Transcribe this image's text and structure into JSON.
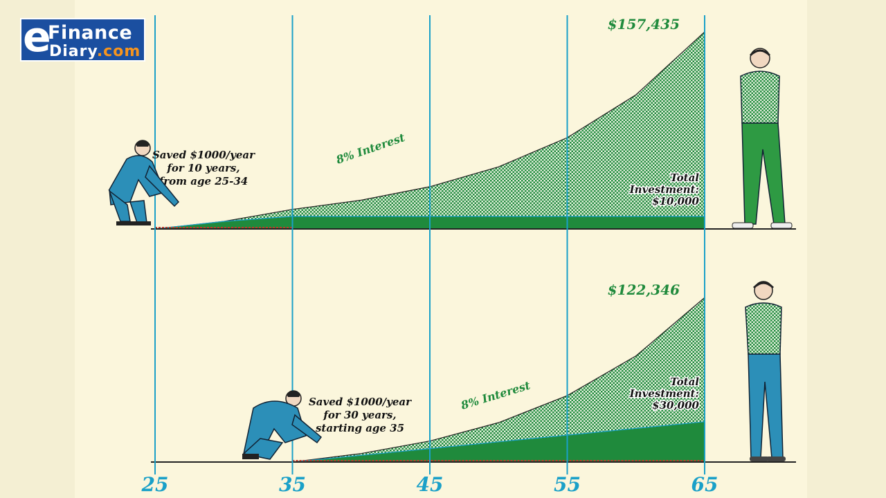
{
  "logo": {
    "letter": "e",
    "line1": "Finance",
    "line2": "Diary",
    "suffix": ".com"
  },
  "colors": {
    "line": "#1aa0c8",
    "green": "#1f8a3c",
    "green_light": "#8fc9a0",
    "text_green": "#1f8a3c",
    "axis_label": "#1aa0c8",
    "principal": "#c0392b"
  },
  "chart_data": [
    {
      "type": "area",
      "panel": "top",
      "x": [
        25,
        30,
        35,
        40,
        45,
        50,
        55,
        60,
        65
      ],
      "xticks": [
        "25",
        "35",
        "45",
        "55",
        "65"
      ],
      "series": [
        {
          "values": [
            0,
            6000,
            15645,
            22988,
            33776,
            49627,
            72920,
            107146,
            157435
          ]
        }
      ],
      "total_investment_values": [
        0,
        6000,
        10000,
        10000,
        10000,
        10000,
        10000,
        10000,
        10000
      ],
      "final_value_label": "$157,435",
      "interest_label": "8% Interest",
      "investment_label": [
        "Total",
        "Investment:",
        "$10,000"
      ],
      "annotation": [
        "Saved $1000/year",
        "for 10 years,",
        "from age 25-34"
      ],
      "ylim": [
        0,
        160000
      ]
    },
    {
      "type": "area",
      "panel": "bottom",
      "x": [
        35,
        40,
        45,
        50,
        55,
        60,
        65
      ],
      "series": [
        {
          "values": [
            0,
            6336,
            15645,
            29324,
            49423,
            78954,
            122346
          ]
        }
      ],
      "total_investment_values": [
        0,
        5000,
        10000,
        15000,
        20000,
        25000,
        30000
      ],
      "final_value_label": "$122,346",
      "interest_label": "8% Interest",
      "investment_label": [
        "Total",
        "Investment:",
        "$30,000"
      ],
      "annotation": [
        "Saved $1000/year",
        "for 30 years,",
        "starting age 35"
      ],
      "ylim": [
        0,
        160000
      ]
    }
  ]
}
